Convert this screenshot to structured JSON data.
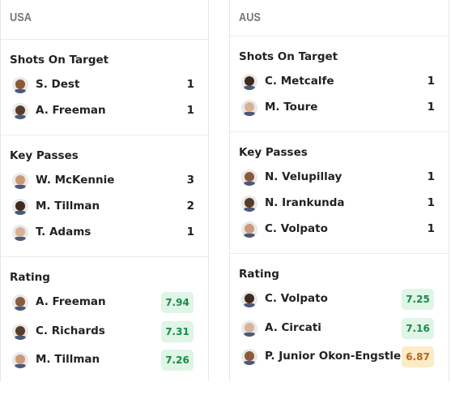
{
  "panels": [
    {
      "team": "USA",
      "sections": [
        {
          "title": "Shots On Target",
          "rows": [
            {
              "player": "S. Dest",
              "value": 1
            },
            {
              "player": "A. Freeman",
              "value": 1
            }
          ]
        },
        {
          "title": "Key Passes",
          "rows": [
            {
              "player": "W. McKennie",
              "value": 3
            },
            {
              "player": "M. Tillman",
              "value": 2
            },
            {
              "player": "T. Adams",
              "value": 1
            }
          ]
        },
        {
          "title": "Rating",
          "rows": [
            {
              "player": "A. Freeman",
              "value": 7.94,
              "color": "#1a8a4a",
              "background": "#dff5e6"
            },
            {
              "player": "C. Richards",
              "value": 7.31,
              "color": "#1a8a4a",
              "background": "#dff5e6"
            },
            {
              "player": "M. Tillman",
              "value": 7.26,
              "color": "#1a8a4a",
              "background": "#dff5e6"
            }
          ]
        }
      ]
    },
    {
      "team": "AUS",
      "sections": [
        {
          "title": "Shots On Target",
          "rows": [
            {
              "player": "C. Metcalfe",
              "value": 1
            },
            {
              "player": "M. Toure",
              "value": 1
            }
          ]
        },
        {
          "title": "Key Passes",
          "rows": [
            {
              "player": "N. Velupillay",
              "value": 1
            },
            {
              "player": "N. Irankunda",
              "value": 1
            },
            {
              "player": "C. Volpato",
              "value": 1
            }
          ]
        },
        {
          "title": "Rating",
          "rows": [
            {
              "player": "C. Volpato",
              "value": 7.25,
              "color": "#1a8a4a",
              "background": "#dff5e6"
            },
            {
              "player": "A. Circati",
              "value": 7.16,
              "color": "#1a8a4a",
              "background": "#dff5e6"
            },
            {
              "player": "P. Junior Okon-Engstler",
              "value": 6.87,
              "color": "#b5651d",
              "background": "#fcebc7"
            }
          ]
        }
      ]
    }
  ]
}
